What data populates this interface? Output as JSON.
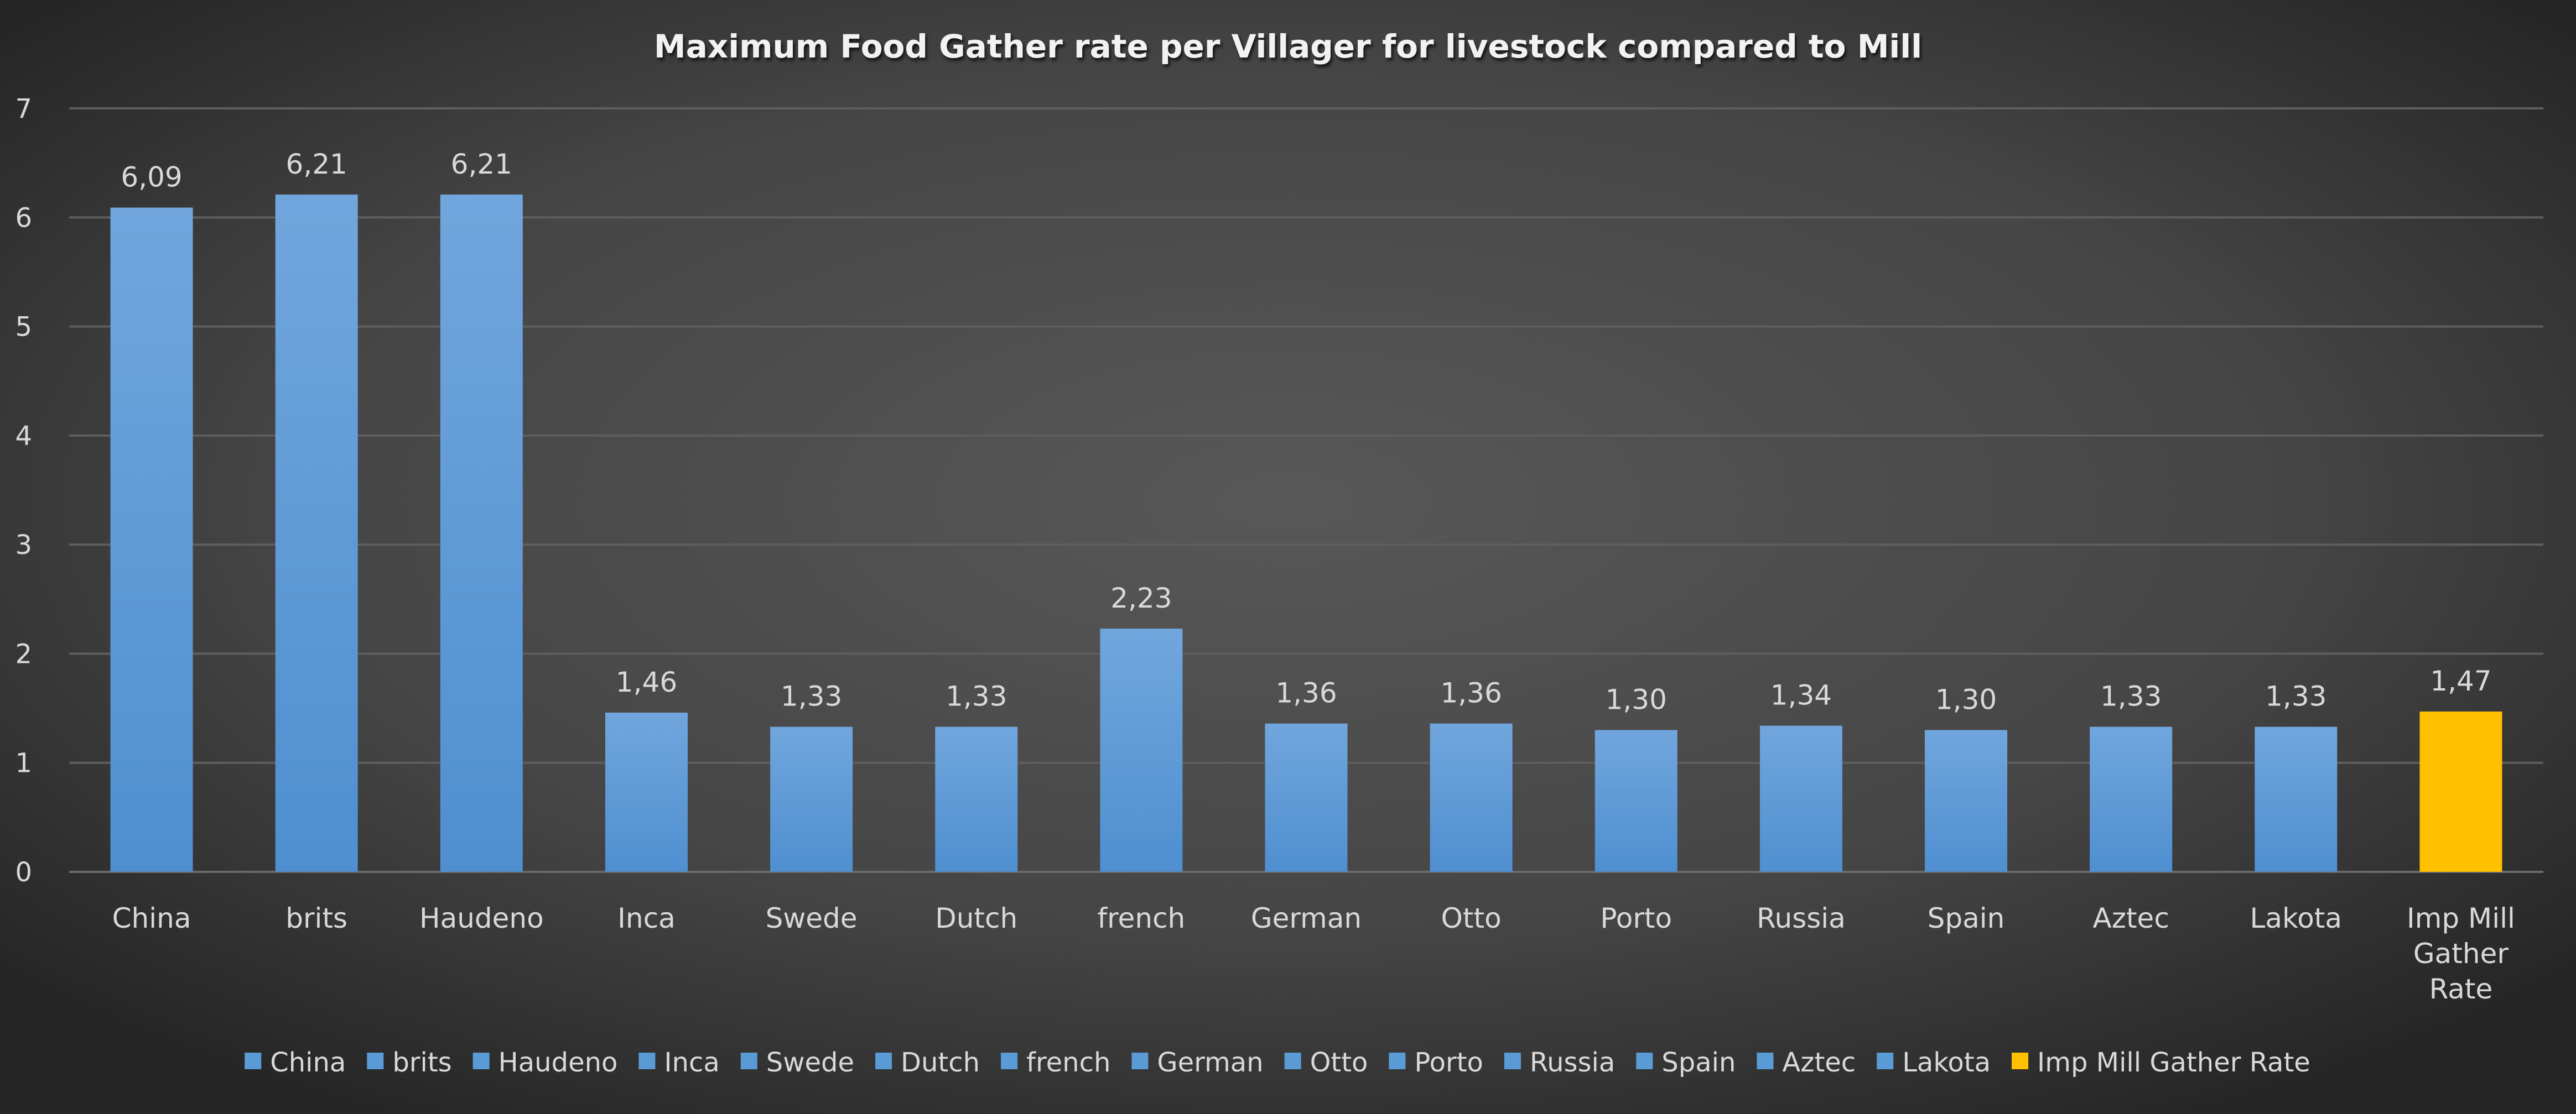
{
  "chart_data": {
    "type": "bar",
    "title": "Maximum Food Gather rate per Villager for livestock compared to Mill",
    "xlabel": "",
    "ylabel": "",
    "ylim": [
      0,
      7
    ],
    "yticks": [
      "0",
      "1",
      "2",
      "3",
      "4",
      "5",
      "6",
      "7"
    ],
    "grid": true,
    "legend_position": "bottom",
    "categories": [
      "China",
      "brits",
      "Haudeno",
      "Inca",
      "Swede",
      "Dutch",
      "french",
      "German",
      "Otto",
      "Porto",
      "Russia",
      "Spain",
      "Aztec",
      "Lakota",
      "Imp Mill Gather Rate"
    ],
    "category_label_lines": [
      [
        "China"
      ],
      [
        "brits"
      ],
      [
        "Haudeno"
      ],
      [
        "Inca"
      ],
      [
        "Swede"
      ],
      [
        "Dutch"
      ],
      [
        "french"
      ],
      [
        "German"
      ],
      [
        "Otto"
      ],
      [
        "Porto"
      ],
      [
        "Russia"
      ],
      [
        "Spain"
      ],
      [
        "Aztec"
      ],
      [
        "Lakota"
      ],
      [
        "Imp Mill",
        "Gather",
        "Rate"
      ]
    ],
    "values": [
      6.09,
      6.21,
      6.21,
      1.46,
      1.33,
      1.33,
      2.23,
      1.36,
      1.36,
      1.3,
      1.34,
      1.3,
      1.33,
      1.33,
      1.47
    ],
    "data_labels": [
      "6,09",
      "6,21",
      "6,21",
      "1,46",
      "1,33",
      "1,33",
      "2,23",
      "1,36",
      "1,36",
      "1,30",
      "1,34",
      "1,30",
      "1,33",
      "1,33",
      "1,47"
    ],
    "colors": [
      "#5b9bd5",
      "#5b9bd5",
      "#5b9bd5",
      "#5b9bd5",
      "#5b9bd5",
      "#5b9bd5",
      "#5b9bd5",
      "#5b9bd5",
      "#5b9bd5",
      "#5b9bd5",
      "#5b9bd5",
      "#5b9bd5",
      "#5b9bd5",
      "#5b9bd5",
      "#ffc000"
    ]
  }
}
